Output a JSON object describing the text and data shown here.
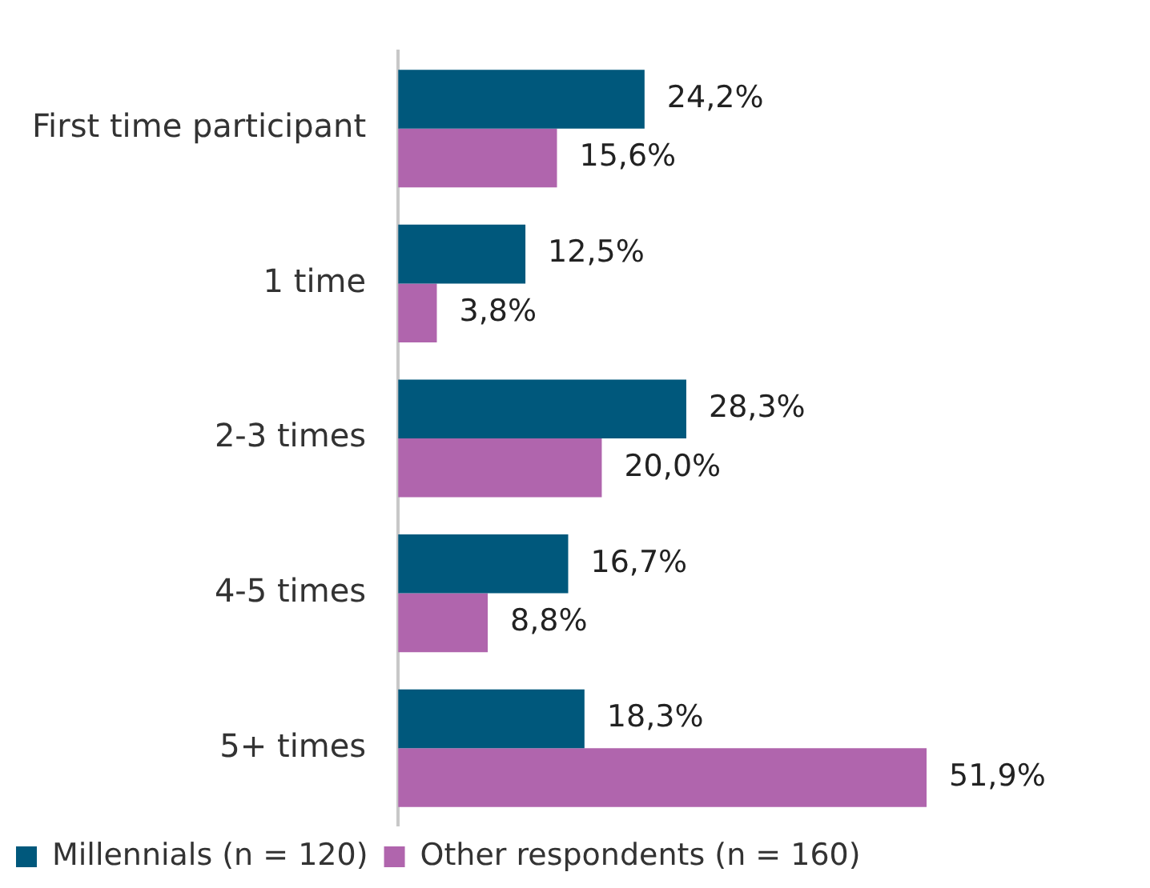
{
  "chart_data": {
    "type": "bar",
    "orientation": "horizontal",
    "categories": [
      "First time participant",
      "1 time",
      "2-3 times",
      "4-5 times",
      "5+ times"
    ],
    "series": [
      {
        "name": "Millennials (n = 120)",
        "color": "#00587c",
        "values": [
          24.2,
          12.5,
          28.3,
          16.7,
          18.3
        ],
        "value_labels": [
          "24,2%",
          "12,5%",
          "28,3%",
          "16,7%",
          "18,3%"
        ]
      },
      {
        "name": "Other respondents (n = 160)",
        "color": "#b065ad",
        "values": [
          15.6,
          3.8,
          20.0,
          8.8,
          51.9
        ],
        "value_labels": [
          "15,6%",
          "3,8%",
          "20,0%",
          "8,8%",
          "51,9%"
        ]
      }
    ],
    "tick_labels": "y",
    "legend": "bottom left"
  }
}
